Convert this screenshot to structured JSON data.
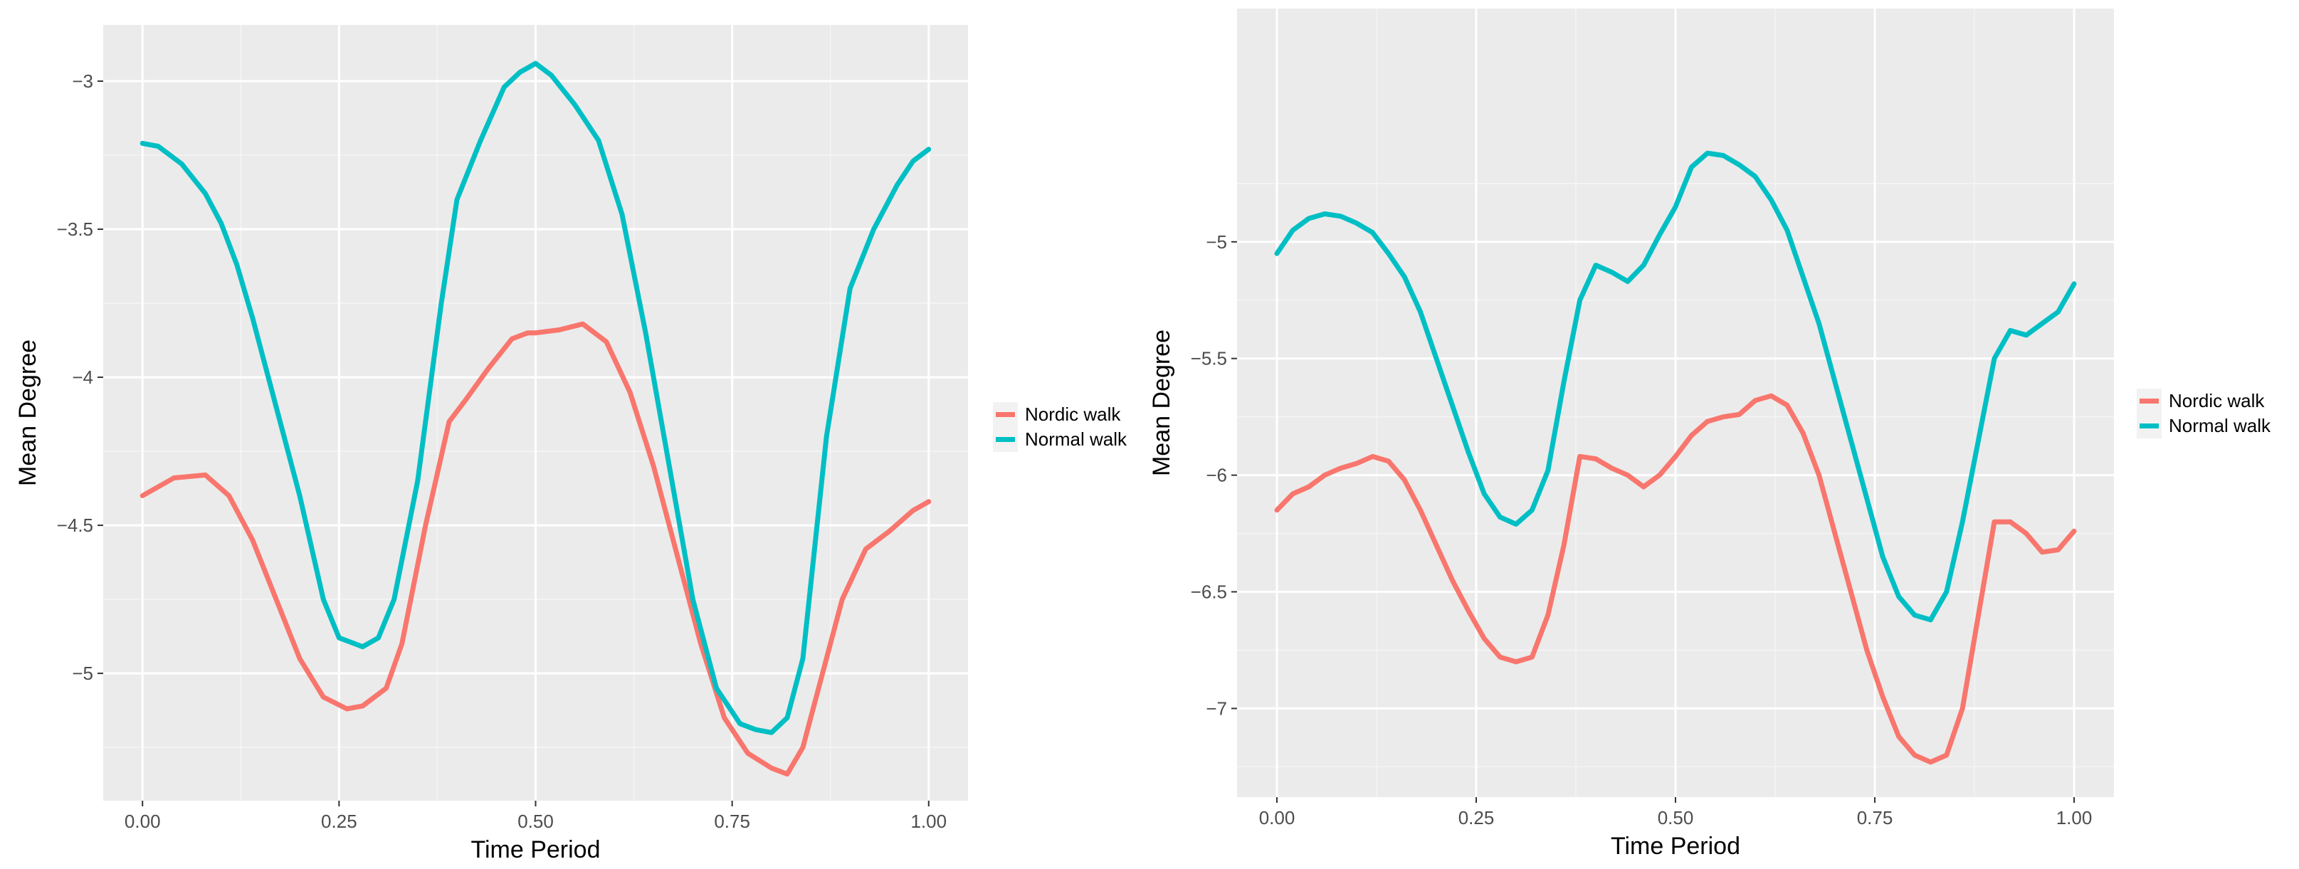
{
  "colors": {
    "panel_bg": "#EBEBEB",
    "grid_major": "#FFFFFF",
    "grid_minor": "#F5F5F5",
    "tick_text": "#4D4D4D",
    "axis_title": "#000000"
  },
  "chart_data": [
    {
      "type": "line",
      "xlabel": "Time Period",
      "ylabel": "Mean Degree",
      "xlim": [
        -0.05,
        1.05
      ],
      "ylim": [
        -5.43,
        -2.81
      ],
      "x_ticks": [
        0.0,
        0.25,
        0.5,
        0.75,
        1.0
      ],
      "x_tick_labels": [
        "0.00",
        "0.25",
        "0.50",
        "0.75",
        "1.00"
      ],
      "y_ticks": [
        -3.0,
        -3.5,
        -4.0,
        -4.5,
        -5.0
      ],
      "y_tick_labels": [
        "−3",
        "−3.5",
        "−4",
        "−4.5",
        "−5"
      ],
      "grid": true,
      "legend_position": "right",
      "series": [
        {
          "name": "Nordic walk",
          "color": "#F8766D",
          "x": [
            0,
            0.04,
            0.08,
            0.11,
            0.14,
            0.17,
            0.2,
            0.23,
            0.26,
            0.28,
            0.31,
            0.33,
            0.36,
            0.39,
            0.41,
            0.44,
            0.47,
            0.49,
            0.5,
            0.53,
            0.56,
            0.59,
            0.62,
            0.65,
            0.68,
            0.71,
            0.74,
            0.77,
            0.8,
            0.82,
            0.84,
            0.86,
            0.89,
            0.92,
            0.95,
            0.98,
            1.0
          ],
          "y": [
            -4.4,
            -4.34,
            -4.33,
            -4.4,
            -4.55,
            -4.75,
            -4.95,
            -5.08,
            -5.12,
            -5.11,
            -5.05,
            -4.9,
            -4.5,
            -4.15,
            -4.08,
            -3.97,
            -3.87,
            -3.85,
            -3.85,
            -3.84,
            -3.82,
            -3.88,
            -4.05,
            -4.3,
            -4.6,
            -4.9,
            -5.15,
            -5.27,
            -5.32,
            -5.34,
            -5.25,
            -5.05,
            -4.75,
            -4.58,
            -4.52,
            -4.45,
            -4.42
          ]
        },
        {
          "name": "Normal walk",
          "color": "#00BFC4",
          "x": [
            0,
            0.02,
            0.05,
            0.08,
            0.1,
            0.12,
            0.14,
            0.17,
            0.2,
            0.23,
            0.25,
            0.27,
            0.28,
            0.3,
            0.32,
            0.35,
            0.38,
            0.4,
            0.43,
            0.46,
            0.48,
            0.5,
            0.52,
            0.55,
            0.58,
            0.61,
            0.64,
            0.67,
            0.7,
            0.73,
            0.76,
            0.78,
            0.8,
            0.82,
            0.84,
            0.87,
            0.9,
            0.93,
            0.96,
            0.98,
            1.0
          ],
          "y": [
            -3.21,
            -3.22,
            -3.28,
            -3.38,
            -3.48,
            -3.62,
            -3.8,
            -4.1,
            -4.4,
            -4.75,
            -4.88,
            -4.9,
            -4.91,
            -4.88,
            -4.75,
            -4.35,
            -3.75,
            -3.4,
            -3.2,
            -3.02,
            -2.97,
            -2.94,
            -2.98,
            -3.08,
            -3.2,
            -3.45,
            -3.85,
            -4.3,
            -4.75,
            -5.05,
            -5.17,
            -5.19,
            -5.2,
            -5.15,
            -4.95,
            -4.2,
            -3.7,
            -3.5,
            -3.35,
            -3.27,
            -3.23
          ]
        }
      ]
    },
    {
      "type": "line",
      "xlabel": "Time Period",
      "ylabel": "Mean Degree",
      "xlim": [
        -0.05,
        1.05
      ],
      "ylim": [
        -7.38,
        -4.0
      ],
      "x_ticks": [
        0.0,
        0.25,
        0.5,
        0.75,
        1.0
      ],
      "x_tick_labels": [
        "0.00",
        "0.25",
        "0.50",
        "0.75",
        "1.00"
      ],
      "y_ticks": [
        -5.0,
        -5.5,
        -6.0,
        -6.5,
        -7.0
      ],
      "y_tick_labels": [
        "−5",
        "−5.5",
        "−6",
        "−6.5",
        "−7"
      ],
      "grid": true,
      "legend_position": "right",
      "series": [
        {
          "name": "Nordic walk",
          "color": "#F8766D",
          "x": [
            0,
            0.02,
            0.04,
            0.06,
            0.08,
            0.1,
            0.12,
            0.14,
            0.16,
            0.18,
            0.2,
            0.22,
            0.24,
            0.26,
            0.28,
            0.3,
            0.32,
            0.34,
            0.36,
            0.38,
            0.4,
            0.42,
            0.44,
            0.46,
            0.48,
            0.5,
            0.52,
            0.54,
            0.56,
            0.58,
            0.6,
            0.62,
            0.64,
            0.66,
            0.68,
            0.7,
            0.72,
            0.74,
            0.76,
            0.78,
            0.8,
            0.82,
            0.84,
            0.86,
            0.88,
            0.9,
            0.92,
            0.94,
            0.96,
            0.98,
            1.0
          ],
          "y": [
            -6.15,
            -6.08,
            -6.05,
            -6.0,
            -5.97,
            -5.95,
            -5.92,
            -5.94,
            -6.02,
            -6.15,
            -6.3,
            -6.45,
            -6.58,
            -6.7,
            -6.78,
            -6.8,
            -6.78,
            -6.6,
            -6.3,
            -5.92,
            -5.93,
            -5.97,
            -6.0,
            -6.05,
            -6.0,
            -5.92,
            -5.83,
            -5.77,
            -5.75,
            -5.74,
            -5.68,
            -5.66,
            -5.7,
            -5.82,
            -6.0,
            -6.25,
            -6.5,
            -6.75,
            -6.95,
            -7.12,
            -7.2,
            -7.23,
            -7.2,
            -7.0,
            -6.6,
            -6.2,
            -6.2,
            -6.25,
            -6.33,
            -6.32,
            -6.24
          ]
        },
        {
          "name": "Normal walk",
          "color": "#00BFC4",
          "x": [
            0,
            0.02,
            0.04,
            0.06,
            0.08,
            0.1,
            0.12,
            0.14,
            0.16,
            0.18,
            0.2,
            0.22,
            0.24,
            0.26,
            0.28,
            0.3,
            0.32,
            0.34,
            0.36,
            0.38,
            0.4,
            0.42,
            0.44,
            0.46,
            0.48,
            0.5,
            0.52,
            0.54,
            0.56,
            0.58,
            0.6,
            0.62,
            0.64,
            0.66,
            0.68,
            0.7,
            0.72,
            0.74,
            0.76,
            0.78,
            0.8,
            0.82,
            0.84,
            0.86,
            0.88,
            0.9,
            0.92,
            0.94,
            0.96,
            0.98,
            1.0
          ],
          "y": [
            -5.05,
            -4.95,
            -4.9,
            -4.88,
            -4.89,
            -4.92,
            -4.96,
            -5.05,
            -5.15,
            -5.3,
            -5.5,
            -5.7,
            -5.9,
            -6.08,
            -6.18,
            -6.21,
            -6.15,
            -5.98,
            -5.6,
            -5.25,
            -5.1,
            -5.13,
            -5.17,
            -5.1,
            -4.97,
            -4.85,
            -4.68,
            -4.62,
            -4.63,
            -4.67,
            -4.72,
            -4.82,
            -4.95,
            -5.15,
            -5.35,
            -5.6,
            -5.85,
            -6.1,
            -6.35,
            -6.52,
            -6.6,
            -6.62,
            -6.5,
            -6.2,
            -5.85,
            -5.5,
            -5.38,
            -5.4,
            -5.35,
            -5.3,
            -5.18
          ]
        }
      ]
    }
  ]
}
